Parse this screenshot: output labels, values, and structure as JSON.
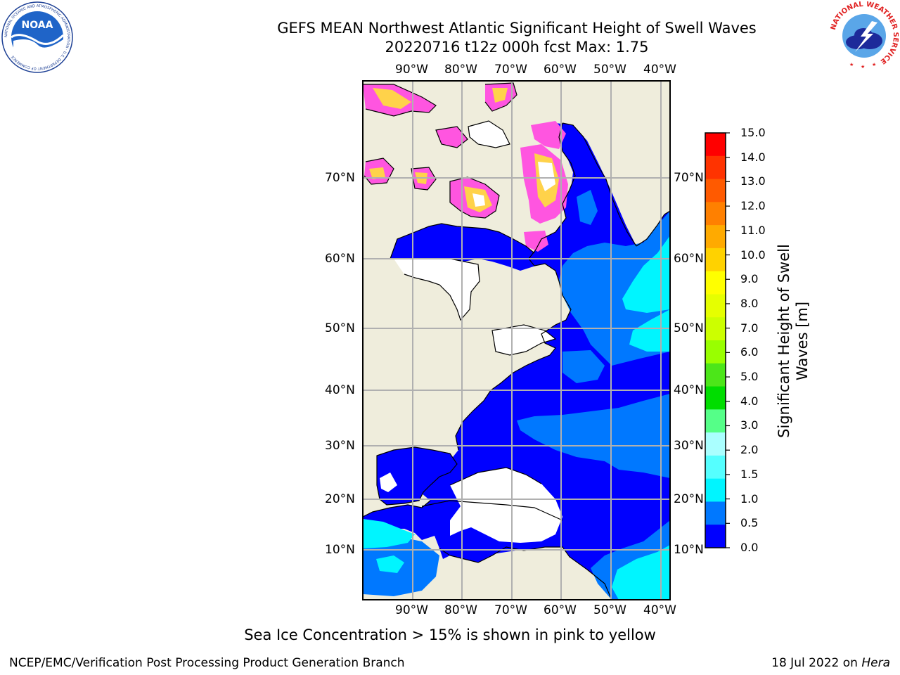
{
  "header": {
    "title_line1": "GEFS MEAN Northwest Atlantic Significant Height of Swell Waves",
    "title_line2": "20220716 t12z 000h fcst   Max: 1.75"
  },
  "logos": {
    "noaa_text": "NOAA",
    "noaa_ring_text": "NATIONAL OCEANIC AND ATMOSPHERIC ADMINISTRATION · U.S. DEPARTMENT OF COMMERCE",
    "nws_ring_text": "NATIONAL WEATHER SERVICE"
  },
  "map": {
    "lon_labels": [
      "90°W",
      "80°W",
      "70°W",
      "60°W",
      "50°W",
      "40°W"
    ],
    "lat_labels": [
      "70°N",
      "60°N",
      "50°N",
      "40°N",
      "30°N",
      "20°N",
      "10°N"
    ],
    "colors": {
      "land": "#efeddc",
      "ocean_low": "#0000ff",
      "ocean_mid": "#0078ff",
      "ocean_high": "#00e8ff",
      "grid": "#b0b0b0",
      "ice": "#ff55e0"
    }
  },
  "colorbar": {
    "ticks": [
      "15.0",
      "14.0",
      "13.0",
      "12.0",
      "11.0",
      "10.0",
      "9.0",
      "8.0",
      "7.0",
      "6.0",
      "5.0",
      "4.0",
      "3.0",
      "2.0",
      "1.5",
      "1.0",
      "0.5",
      "0.0"
    ],
    "colors": [
      "#ff0000",
      "#ff3300",
      "#ff5a00",
      "#ff8000",
      "#ffaa00",
      "#ffd200",
      "#ffff00",
      "#e6ff00",
      "#ccff00",
      "#99ff00",
      "#4ce619",
      "#00dd00",
      "#55ff88",
      "#aaffff",
      "#55ffff",
      "#00f5ff",
      "#0078ff",
      "#0000ff"
    ],
    "label": "Significant Height of Swell Waves [m]"
  },
  "notes": {
    "sea_ice": "Sea Ice Concentration > 15% is shown in pink to yellow",
    "credit": "NCEP/EMC/Verification Post Processing Product Generation Branch",
    "date": "18 Jul 2022 on ",
    "machine": "Hera"
  }
}
